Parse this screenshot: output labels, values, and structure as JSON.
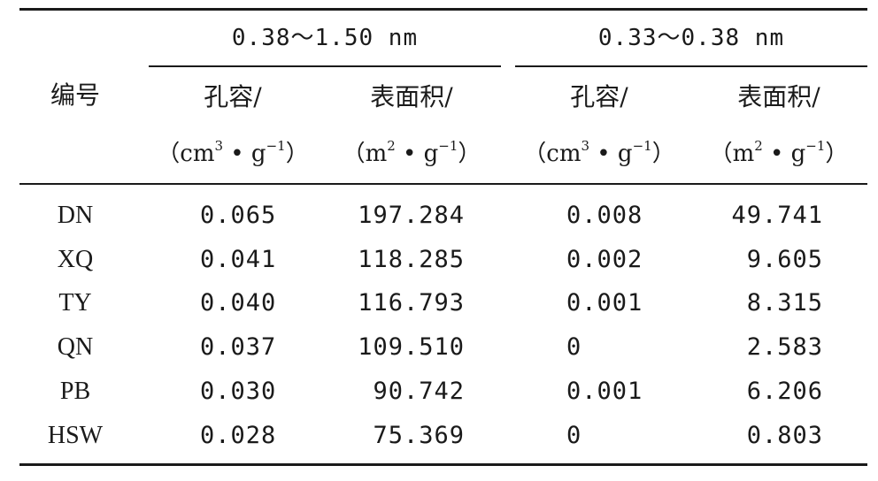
{
  "table": {
    "col_id_header": "编号",
    "groups": [
      {
        "label": "0.38～1.50 nm"
      },
      {
        "label": "0.33～0.38 nm"
      }
    ],
    "subheaders": [
      {
        "label": "孔容/",
        "unit_prefix": "（cm",
        "unit_sup1": "3",
        "unit_mid": " • g",
        "unit_sup2": "−1",
        "unit_suffix": "）"
      },
      {
        "label": "表面积/",
        "unit_prefix": "（m",
        "unit_sup1": "2",
        "unit_mid": " • g",
        "unit_sup2": "−1",
        "unit_suffix": "）"
      },
      {
        "label": "孔容/",
        "unit_prefix": "（cm",
        "unit_sup1": "3",
        "unit_mid": " • g",
        "unit_sup2": "−1",
        "unit_suffix": "）"
      },
      {
        "label": "表面积/",
        "unit_prefix": "（m",
        "unit_sup1": "2",
        "unit_mid": " • g",
        "unit_sup2": "−1",
        "unit_suffix": "）"
      }
    ],
    "rows": [
      {
        "id": "DN",
        "cells": [
          "0.065",
          "197.284",
          "0.008",
          "49.741"
        ]
      },
      {
        "id": "XQ",
        "cells": [
          "0.041",
          "118.285",
          "0.002",
          "9.605"
        ]
      },
      {
        "id": "TY",
        "cells": [
          "0.040",
          "116.793",
          "0.001",
          "8.315"
        ]
      },
      {
        "id": "QN",
        "cells": [
          "0.037",
          "109.510",
          "0",
          "2.583"
        ]
      },
      {
        "id": "PB",
        "cells": [
          "0.030",
          "90.742",
          "0.001",
          "6.206"
        ]
      },
      {
        "id": "HSW",
        "cells": [
          "0.028",
          "75.369",
          "0",
          "0.803"
        ]
      }
    ]
  }
}
